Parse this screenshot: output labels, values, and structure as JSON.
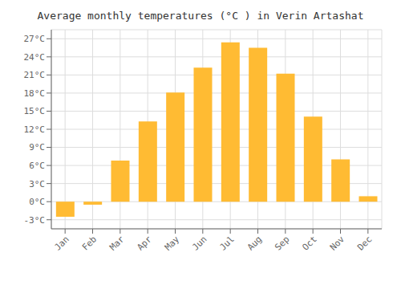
{
  "chart_data": {
    "type": "bar",
    "title": "Average monthly temperatures (°C ) in Verin Artashat",
    "categories": [
      "Jan",
      "Feb",
      "Mar",
      "Apr",
      "May",
      "Jun",
      "Jul",
      "Aug",
      "Sep",
      "Oct",
      "Nov",
      "Dec"
    ],
    "values": [
      -2.5,
      -0.5,
      6.8,
      13.3,
      18.1,
      22.2,
      26.4,
      25.5,
      21.2,
      14.1,
      7.0,
      0.9
    ],
    "color": "#FFBB33",
    "ylim": [
      -4.5,
      28.5
    ],
    "yticks": [
      {
        "value": -3,
        "label": "-3°C"
      },
      {
        "value": 0,
        "label": "0°C"
      },
      {
        "value": 3,
        "label": "3°C"
      },
      {
        "value": 6,
        "label": "6°C"
      },
      {
        "value": 9,
        "label": "9°C"
      },
      {
        "value": 12,
        "label": "12°C"
      },
      {
        "value": 15,
        "label": "15°C"
      },
      {
        "value": 18,
        "label": "18°C"
      },
      {
        "value": 21,
        "label": "21°C"
      },
      {
        "value": 24,
        "label": "24°C"
      },
      {
        "value": 27,
        "label": "27°C"
      }
    ],
    "grid": true
  }
}
